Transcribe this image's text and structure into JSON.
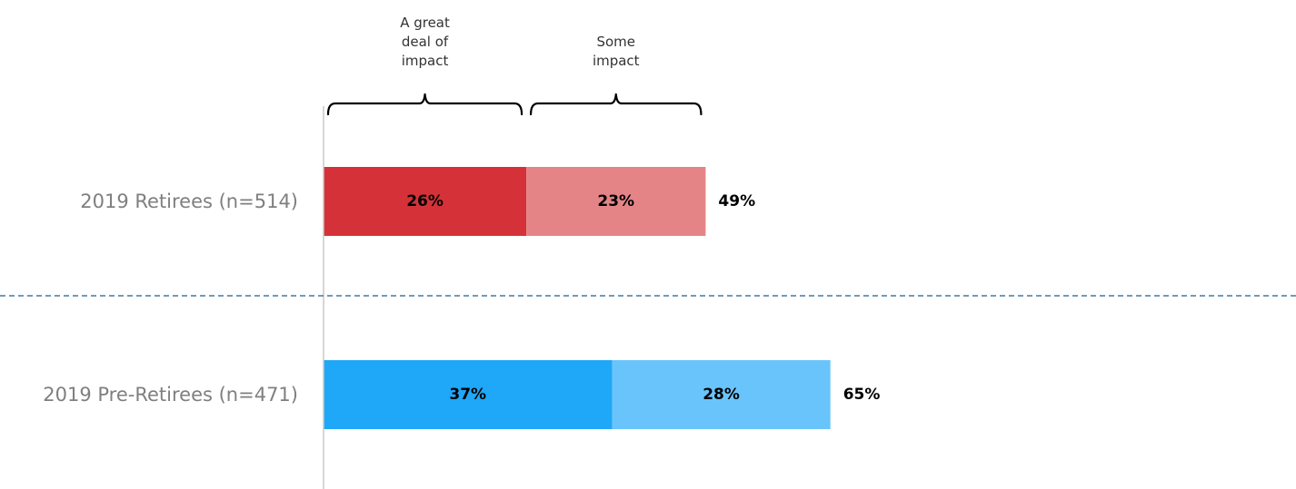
{
  "chart_data": {
    "type": "bar",
    "orientation": "horizontal",
    "stacked": true,
    "xlim": [
      0,
      100
    ],
    "grid": false,
    "legend": "none",
    "headers": [
      {
        "series_index": 0,
        "lines": [
          "A great",
          "deal of",
          "impact"
        ]
      },
      {
        "series_index": 1,
        "lines": [
          "Some",
          "impact"
        ]
      }
    ],
    "categories": [
      "2019 Retirees (n=514)",
      "2019 Pre-Retirees (n=471)"
    ],
    "series": [
      {
        "values": [
          26,
          37
        ],
        "labels": [
          "26%",
          "37%"
        ],
        "colors": [
          "#d43238",
          "#1fa7f8"
        ]
      },
      {
        "values": [
          23,
          28
        ],
        "labels": [
          "23%",
          "28%"
        ],
        "colors": [
          "#e48487",
          "#6ac4fc"
        ]
      }
    ],
    "totals": [
      49,
      65
    ],
    "total_labels": [
      "49%",
      "65%"
    ],
    "separator": {
      "style": "dashed",
      "color": "#3e78ac"
    }
  }
}
